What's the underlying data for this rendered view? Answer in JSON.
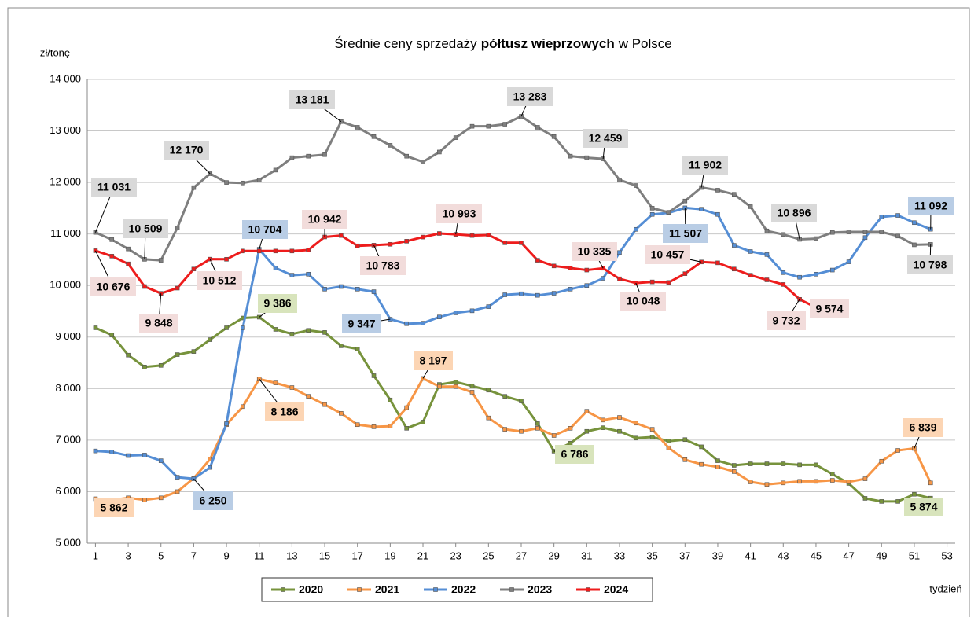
{
  "chart_data": {
    "type": "line",
    "title_parts": [
      "Średnie ceny sprzedaży",
      "półtusz wieprzowych",
      "w Polsce"
    ],
    "y_label": "zł/tonę",
    "x_label": "tydzień",
    "x": [
      1,
      2,
      3,
      4,
      5,
      6,
      7,
      8,
      9,
      10,
      11,
      12,
      13,
      14,
      15,
      16,
      17,
      18,
      19,
      20,
      21,
      22,
      23,
      24,
      25,
      26,
      27,
      28,
      29,
      30,
      31,
      32,
      33,
      34,
      35,
      36,
      37,
      38,
      39,
      40,
      41,
      42,
      43,
      44,
      45,
      46,
      47,
      48,
      49,
      50,
      51,
      52
    ],
    "xlim": [
      0.5,
      53.5
    ],
    "xticks": [
      1,
      3,
      5,
      7,
      9,
      11,
      13,
      15,
      17,
      19,
      21,
      23,
      25,
      27,
      29,
      31,
      33,
      35,
      37,
      39,
      41,
      43,
      45,
      47,
      49,
      51,
      53
    ],
    "ylim": [
      5000,
      14000
    ],
    "yticks": [
      {
        "value": 5000,
        "label": "5 000"
      },
      {
        "value": 6000,
        "label": "6 000"
      },
      {
        "value": 7000,
        "label": "7 000"
      },
      {
        "value": 8000,
        "label": "8 000"
      },
      {
        "value": 9000,
        "label": "9 000"
      },
      {
        "value": 10000,
        "label": "10 000"
      },
      {
        "value": 11000,
        "label": "11 000"
      },
      {
        "value": 12000,
        "label": "12 000"
      },
      {
        "value": 13000,
        "label": "13 000"
      },
      {
        "value": 14000,
        "label": "14 000"
      }
    ],
    "grid": true,
    "legend": "bottom",
    "series": [
      {
        "name": "2020",
        "color": "#77933c",
        "label_color": "#d8e4bc",
        "values": [
          9180,
          9040,
          8650,
          8420,
          8450,
          8660,
          8720,
          8950,
          9180,
          9370,
          9386,
          9150,
          9060,
          9130,
          9090,
          8830,
          8770,
          8250,
          7780,
          7230,
          7350,
          8080,
          8130,
          8050,
          7970,
          7850,
          7760,
          7320,
          6786,
          6940,
          7170,
          7240,
          7170,
          7040,
          7060,
          6980,
          7010,
          6870,
          6600,
          6510,
          6540,
          6540,
          6540,
          6520,
          6520,
          6340,
          6160,
          5870,
          5810,
          5810,
          5950,
          5874
        ],
        "value_labels": [
          null,
          null,
          null,
          null,
          null,
          null,
          null,
          null,
          null,
          null,
          "9 386",
          null,
          null,
          null,
          null,
          null,
          null,
          null,
          null,
          null,
          null,
          null,
          null,
          null,
          null,
          null,
          null,
          null,
          "6 786",
          null,
          null,
          null,
          null,
          null,
          null,
          null,
          null,
          null,
          null,
          null,
          null,
          null,
          null,
          null,
          null,
          null,
          null,
          null,
          null,
          null,
          null,
          "5 874"
        ]
      },
      {
        "name": "2021",
        "color": "#f79646",
        "label_color": "#fcd5b4",
        "values": [
          5862,
          5840,
          5880,
          5840,
          5880,
          6000,
          6260,
          6630,
          7300,
          7650,
          8186,
          8110,
          8020,
          7850,
          7690,
          7520,
          7300,
          7260,
          7270,
          7630,
          8197,
          8040,
          8040,
          7930,
          7430,
          7210,
          7170,
          7230,
          7090,
          7230,
          7560,
          7390,
          7440,
          7330,
          7210,
          6850,
          6620,
          6530,
          6480,
          6390,
          6190,
          6140,
          6170,
          6200,
          6200,
          6220,
          6190,
          6250,
          6590,
          6800,
          6839,
          6170
        ],
        "value_labels": [
          "5 862",
          null,
          null,
          null,
          null,
          null,
          null,
          null,
          null,
          null,
          "8 186",
          null,
          null,
          null,
          null,
          null,
          null,
          null,
          null,
          null,
          "8 197",
          null,
          null,
          null,
          null,
          null,
          null,
          null,
          null,
          null,
          null,
          null,
          null,
          null,
          null,
          null,
          null,
          null,
          null,
          null,
          null,
          null,
          null,
          null,
          null,
          null,
          null,
          null,
          null,
          null,
          "6 839",
          null
        ]
      },
      {
        "name": "2022",
        "color": "#558ed5",
        "label_color": "#b9cde5",
        "values": [
          6790,
          6770,
          6700,
          6710,
          6600,
          6280,
          6250,
          6470,
          7320,
          9180,
          10704,
          10340,
          10200,
          10220,
          9930,
          9980,
          9930,
          9880,
          9347,
          9260,
          9270,
          9390,
          9470,
          9510,
          9590,
          9820,
          9840,
          9810,
          9850,
          9930,
          10000,
          10140,
          10640,
          11090,
          11380,
          11410,
          11507,
          11480,
          11380,
          10780,
          10660,
          10600,
          10250,
          10160,
          10220,
          10300,
          10460,
          10930,
          11330,
          11360,
          11220,
          11092
        ],
        "value_labels": [
          null,
          null,
          null,
          null,
          null,
          null,
          "6 250",
          null,
          null,
          null,
          "10 704",
          null,
          null,
          null,
          null,
          null,
          null,
          null,
          "9 347",
          null,
          null,
          null,
          null,
          null,
          null,
          null,
          null,
          null,
          null,
          null,
          null,
          null,
          null,
          null,
          null,
          null,
          "11 507",
          null,
          null,
          null,
          null,
          null,
          null,
          null,
          null,
          null,
          null,
          null,
          null,
          null,
          null,
          "11 092"
        ]
      },
      {
        "name": "2023",
        "color": "#7f7f7f",
        "label_color": "#d9d9d9",
        "values": [
          11031,
          10890,
          10710,
          10509,
          10490,
          11120,
          11900,
          12170,
          12000,
          11990,
          12050,
          12240,
          12480,
          12510,
          12540,
          13181,
          13070,
          12890,
          12720,
          12510,
          12400,
          12590,
          12870,
          13090,
          13090,
          13130,
          13283,
          13070,
          12890,
          12510,
          12480,
          12459,
          12050,
          11940,
          11500,
          11420,
          11640,
          11902,
          11850,
          11770,
          11530,
          11060,
          10990,
          10896,
          10910,
          11030,
          11040,
          11040,
          11040,
          10960,
          10790,
          10798
        ],
        "value_labels": [
          "11 031",
          null,
          null,
          "10 509",
          null,
          null,
          null,
          "12 170",
          null,
          null,
          null,
          null,
          null,
          null,
          null,
          "13 181",
          null,
          null,
          null,
          null,
          null,
          null,
          null,
          null,
          null,
          null,
          "13 283",
          null,
          null,
          null,
          null,
          "12 459",
          null,
          null,
          null,
          null,
          null,
          "11 902",
          null,
          null,
          null,
          null,
          null,
          "10 896",
          null,
          null,
          null,
          null,
          null,
          null,
          null,
          "10 798"
        ]
      },
      {
        "name": "2024",
        "color": "#ee1c1c",
        "label_color": "#f2dcdb",
        "values": [
          10676,
          10570,
          10420,
          9980,
          9848,
          9950,
          10320,
          10512,
          10510,
          10670,
          10670,
          10670,
          10670,
          10690,
          10942,
          10970,
          10770,
          10783,
          10800,
          10860,
          10940,
          11010,
          10993,
          10970,
          10980,
          10830,
          10830,
          10490,
          10380,
          10340,
          10300,
          10335,
          10130,
          10048,
          10070,
          10060,
          10230,
          10457,
          10440,
          10320,
          10200,
          10110,
          10020,
          9732,
          9574,
          null,
          null,
          null,
          null,
          null,
          null,
          null
        ],
        "value_labels": [
          "10 676",
          null,
          null,
          null,
          "9 848",
          null,
          null,
          "10 512",
          null,
          null,
          null,
          null,
          null,
          null,
          "10 942",
          null,
          null,
          "10 783",
          null,
          null,
          null,
          null,
          "10 993",
          null,
          null,
          null,
          null,
          null,
          null,
          null,
          null,
          "10 335",
          null,
          "10 048",
          null,
          null,
          null,
          "10 457",
          null,
          null,
          null,
          null,
          null,
          "9 732",
          "9 574",
          null,
          null,
          null,
          null,
          null,
          null,
          null
        ]
      }
    ]
  }
}
